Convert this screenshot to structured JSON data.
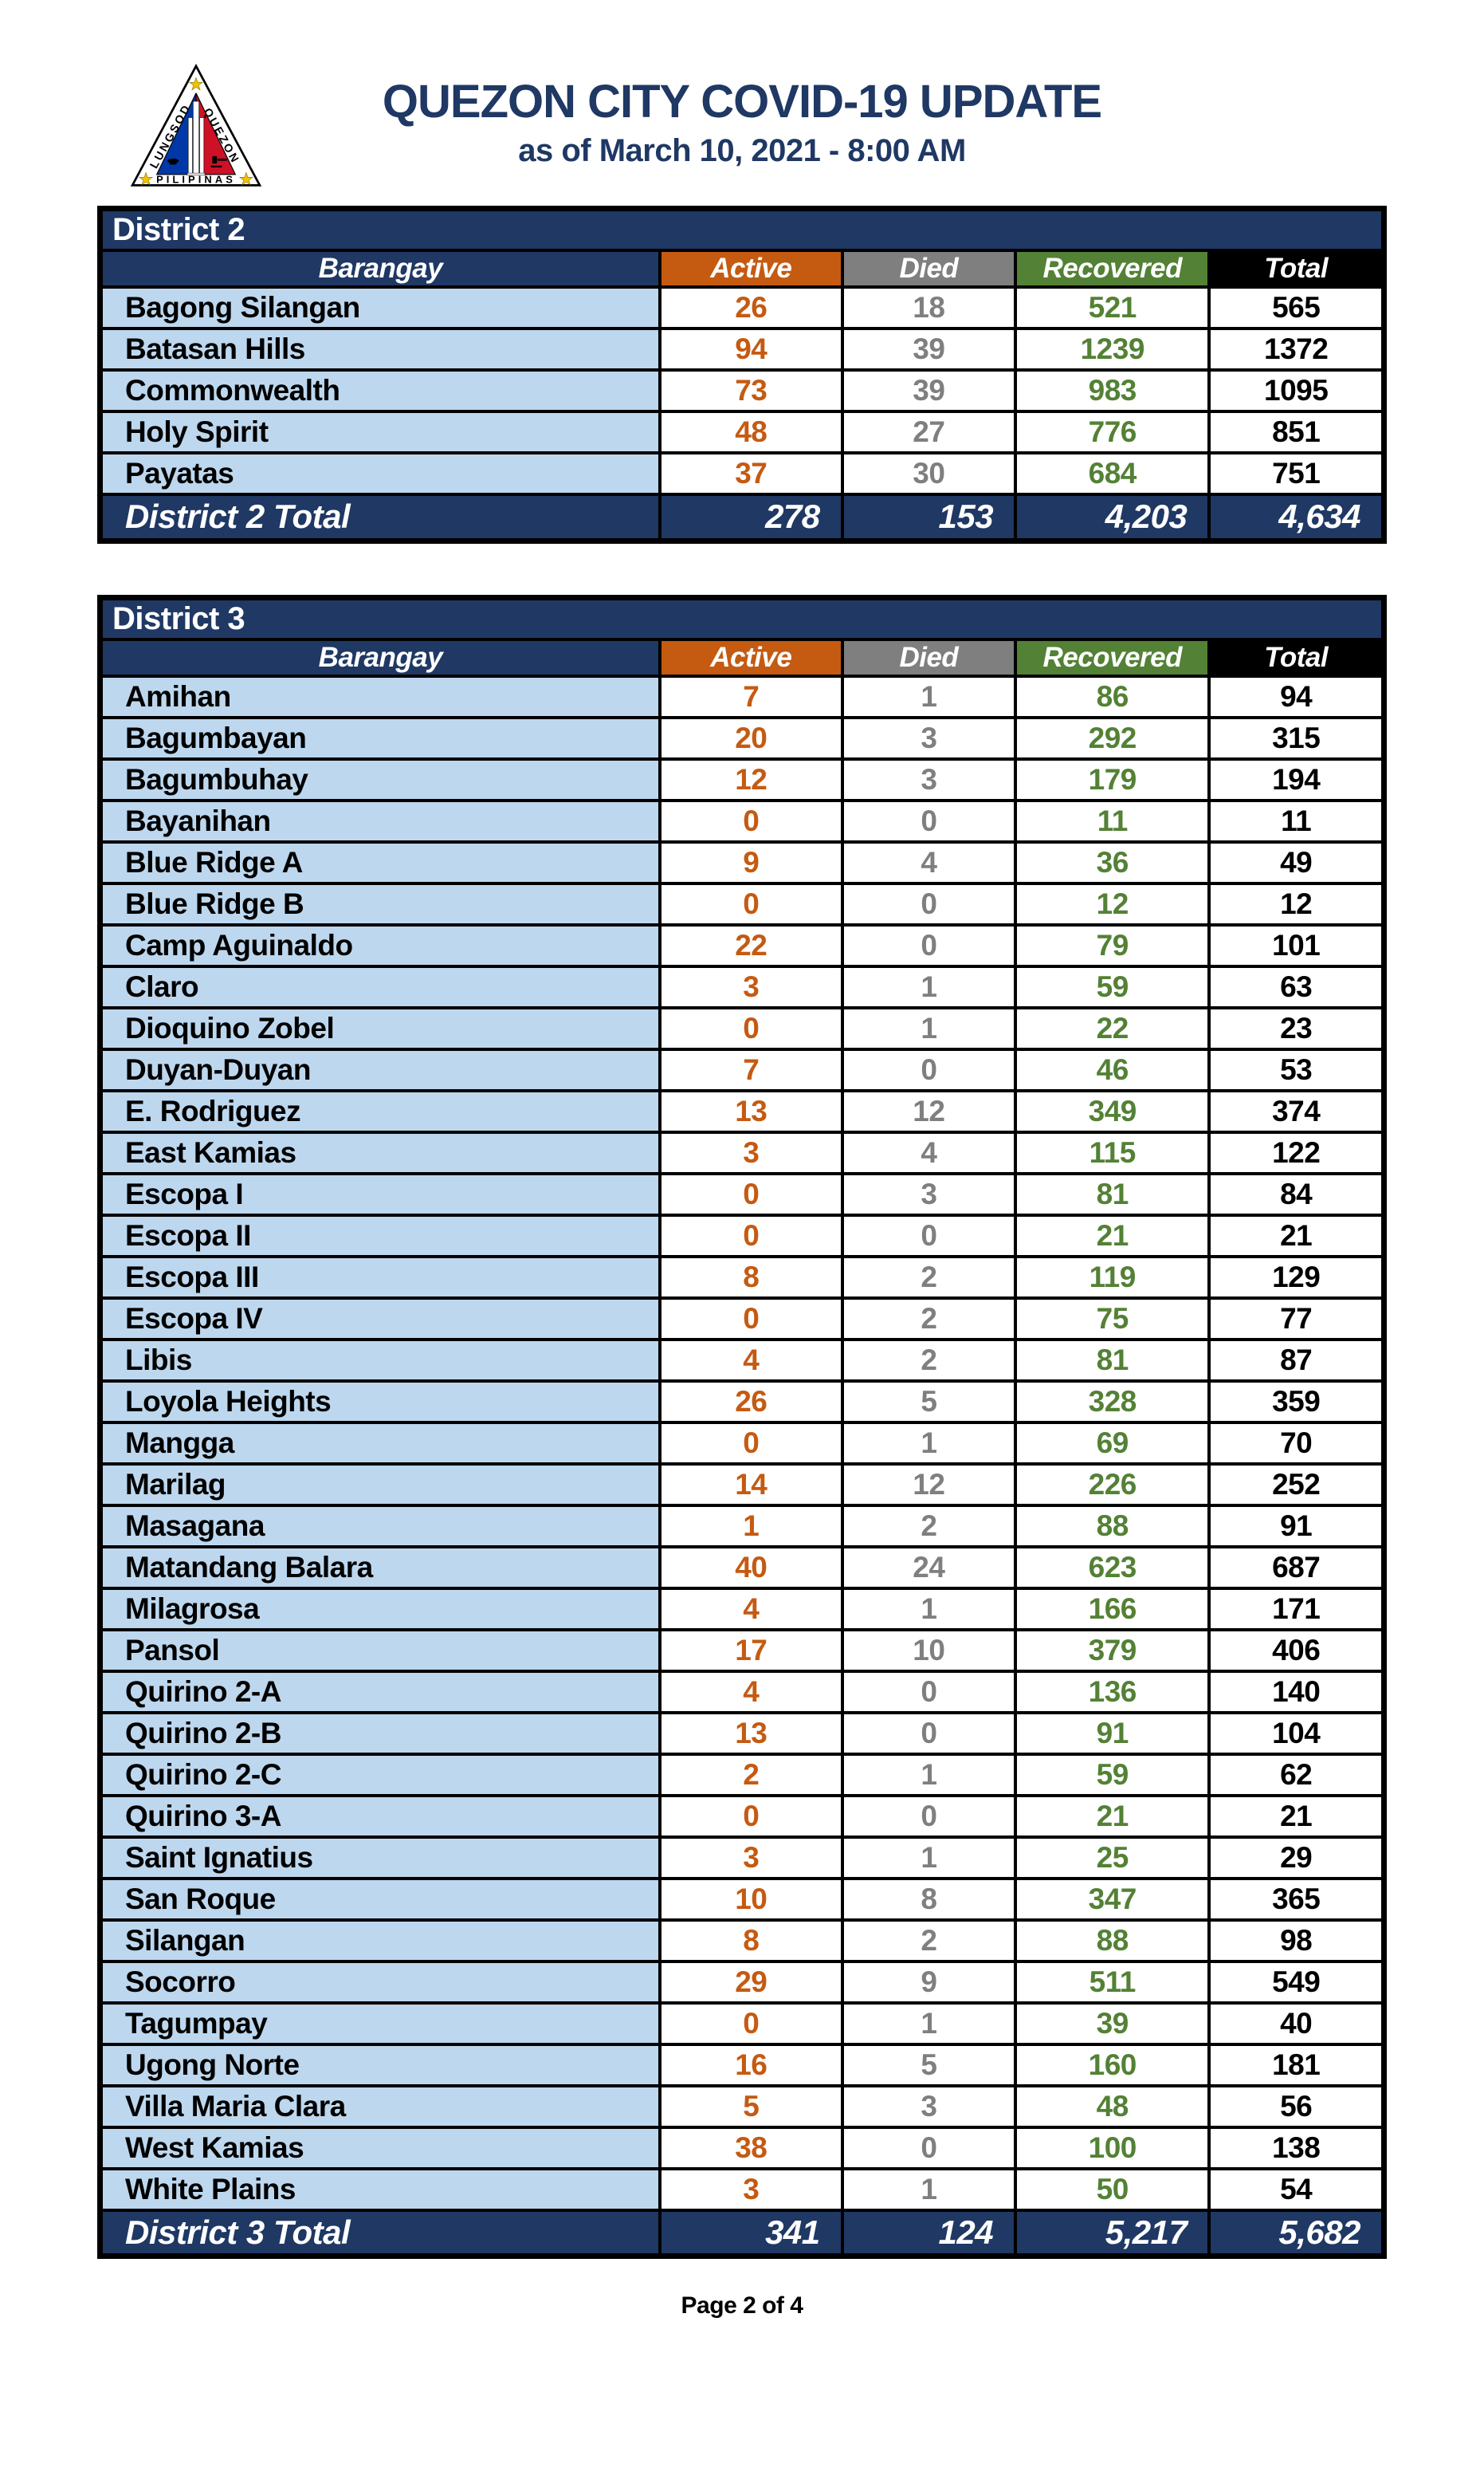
{
  "header": {
    "title": "QUEZON CITY COVID-19 UPDATE",
    "subtitle": "as of March 10, 2021 - 8:00 AM",
    "seal": {
      "text_left": "LUNGSOD",
      "text_right": "QUEZON",
      "text_bottom": "PILIPINAS"
    }
  },
  "columns": [
    "Barangay",
    "Active",
    "Died",
    "Recovered",
    "Total"
  ],
  "colors": {
    "navy": "#1F3864",
    "orange": "#C55A11",
    "gray": "#7F7F7F",
    "green": "#538135",
    "lightblue": "#BDD7EE",
    "seal_blue": "#0038A8",
    "seal_red": "#CE1126",
    "seal_gold": "#F2C200"
  },
  "tables": [
    {
      "district": "District 2",
      "rows": [
        [
          "Bagong Silangan",
          "26",
          "18",
          "521",
          "565"
        ],
        [
          "Batasan Hills",
          "94",
          "39",
          "1239",
          "1372"
        ],
        [
          "Commonwealth",
          "73",
          "39",
          "983",
          "1095"
        ],
        [
          "Holy Spirit",
          "48",
          "27",
          "776",
          "851"
        ],
        [
          "Payatas",
          "37",
          "30",
          "684",
          "751"
        ]
      ],
      "total_label": "District 2 Total",
      "totals": [
        "278",
        "153",
        "4,203",
        "4,634"
      ]
    },
    {
      "district": "District 3",
      "rows": [
        [
          "Amihan",
          "7",
          "1",
          "86",
          "94"
        ],
        [
          "Bagumbayan",
          "20",
          "3",
          "292",
          "315"
        ],
        [
          "Bagumbuhay",
          "12",
          "3",
          "179",
          "194"
        ],
        [
          "Bayanihan",
          "0",
          "0",
          "11",
          "11"
        ],
        [
          "Blue Ridge A",
          "9",
          "4",
          "36",
          "49"
        ],
        [
          "Blue Ridge B",
          "0",
          "0",
          "12",
          "12"
        ],
        [
          "Camp Aguinaldo",
          "22",
          "0",
          "79",
          "101"
        ],
        [
          "Claro",
          "3",
          "1",
          "59",
          "63"
        ],
        [
          "Dioquino Zobel",
          "0",
          "1",
          "22",
          "23"
        ],
        [
          "Duyan-Duyan",
          "7",
          "0",
          "46",
          "53"
        ],
        [
          "E. Rodriguez",
          "13",
          "12",
          "349",
          "374"
        ],
        [
          "East Kamias",
          "3",
          "4",
          "115",
          "122"
        ],
        [
          "Escopa I",
          "0",
          "3",
          "81",
          "84"
        ],
        [
          "Escopa II",
          "0",
          "0",
          "21",
          "21"
        ],
        [
          "Escopa III",
          "8",
          "2",
          "119",
          "129"
        ],
        [
          "Escopa IV",
          "0",
          "2",
          "75",
          "77"
        ],
        [
          "Libis",
          "4",
          "2",
          "81",
          "87"
        ],
        [
          "Loyola Heights",
          "26",
          "5",
          "328",
          "359"
        ],
        [
          "Mangga",
          "0",
          "1",
          "69",
          "70"
        ],
        [
          "Marilag",
          "14",
          "12",
          "226",
          "252"
        ],
        [
          "Masagana",
          "1",
          "2",
          "88",
          "91"
        ],
        [
          "Matandang Balara",
          "40",
          "24",
          "623",
          "687"
        ],
        [
          "Milagrosa",
          "4",
          "1",
          "166",
          "171"
        ],
        [
          "Pansol",
          "17",
          "10",
          "379",
          "406"
        ],
        [
          "Quirino 2-A",
          "4",
          "0",
          "136",
          "140"
        ],
        [
          "Quirino 2-B",
          "13",
          "0",
          "91",
          "104"
        ],
        [
          "Quirino 2-C",
          "2",
          "1",
          "59",
          "62"
        ],
        [
          "Quirino 3-A",
          "0",
          "0",
          "21",
          "21"
        ],
        [
          "Saint Ignatius",
          "3",
          "1",
          "25",
          "29"
        ],
        [
          "San Roque",
          "10",
          "8",
          "347",
          "365"
        ],
        [
          "Silangan",
          "8",
          "2",
          "88",
          "98"
        ],
        [
          "Socorro",
          "29",
          "9",
          "511",
          "549"
        ],
        [
          "Tagumpay",
          "0",
          "1",
          "39",
          "40"
        ],
        [
          "Ugong Norte",
          "16",
          "5",
          "160",
          "181"
        ],
        [
          "Villa Maria Clara",
          "5",
          "3",
          "48",
          "56"
        ],
        [
          "West Kamias",
          "38",
          "0",
          "100",
          "138"
        ],
        [
          "White Plains",
          "3",
          "1",
          "50",
          "54"
        ]
      ],
      "total_label": "District 3 Total",
      "totals": [
        "341",
        "124",
        "5,217",
        "5,682"
      ]
    }
  ],
  "footer": {
    "page_label": "Page 2 of 4"
  }
}
